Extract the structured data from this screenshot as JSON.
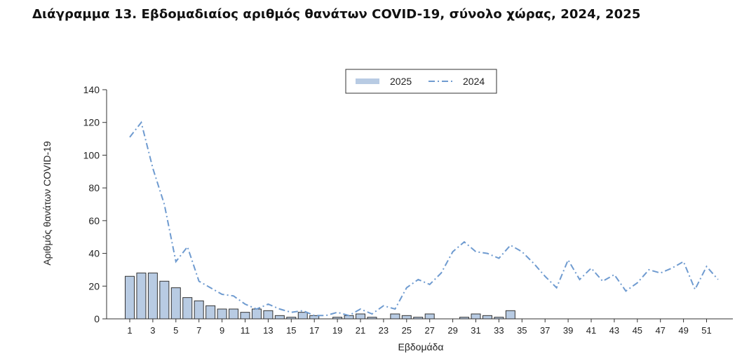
{
  "title": "Διάγραμμα 13. Εβδομαδιαίος αριθμός θανάτων COVID-19, σύνολο χώρας, 2024, 2025",
  "chart_data": {
    "type": "bar",
    "xlabel": "Εβδομάδα",
    "ylabel": "Αριθμός θανάτων COVID-19",
    "ylim": [
      0,
      140
    ],
    "yticks": [
      0,
      20,
      40,
      60,
      80,
      100,
      120,
      140
    ],
    "xlim": [
      1,
      52
    ],
    "xticks": [
      1,
      3,
      5,
      7,
      9,
      11,
      13,
      15,
      17,
      19,
      21,
      23,
      25,
      27,
      29,
      31,
      33,
      35,
      37,
      39,
      41,
      43,
      45,
      47,
      49,
      51
    ],
    "grid": false,
    "legend_position": "top-center",
    "series": [
      {
        "name": "2025",
        "type": "bar",
        "color": "#b8cbe3",
        "x": [
          1,
          2,
          3,
          4,
          5,
          6,
          7,
          8,
          9,
          10,
          11,
          12,
          13,
          14,
          15,
          16,
          17,
          18,
          19,
          20,
          21,
          22,
          23,
          24,
          25,
          26,
          27,
          28,
          29,
          30,
          31,
          32,
          33,
          34
        ],
        "values": [
          26,
          28,
          28,
          23,
          19,
          13,
          11,
          8,
          6,
          6,
          4,
          6,
          5,
          2,
          1,
          4,
          2,
          0,
          1,
          2,
          3,
          1,
          0,
          3,
          2,
          1,
          3,
          0,
          0,
          1,
          3,
          2,
          1,
          5
        ]
      },
      {
        "name": "2024",
        "type": "line",
        "color": "#6f9bd0",
        "x": [
          1,
          2,
          3,
          4,
          5,
          6,
          7,
          8,
          9,
          10,
          11,
          12,
          13,
          14,
          15,
          16,
          17,
          18,
          19,
          20,
          21,
          22,
          23,
          24,
          25,
          26,
          27,
          28,
          29,
          30,
          31,
          32,
          33,
          34,
          35,
          36,
          37,
          38,
          39,
          40,
          41,
          42,
          43,
          44,
          45,
          46,
          47,
          48,
          49,
          50,
          51,
          52
        ],
        "values": [
          111,
          120,
          92,
          70,
          35,
          44,
          23,
          19,
          15,
          14,
          9,
          6,
          9,
          6,
          4,
          5,
          2,
          2,
          4,
          2,
          6,
          3,
          8,
          6,
          19,
          24,
          21,
          28,
          41,
          47,
          41,
          40,
          37,
          45,
          41,
          34,
          26,
          19,
          36,
          24,
          31,
          23,
          27,
          17,
          22,
          30,
          28,
          31,
          35,
          18,
          32,
          24
        ]
      }
    ]
  }
}
